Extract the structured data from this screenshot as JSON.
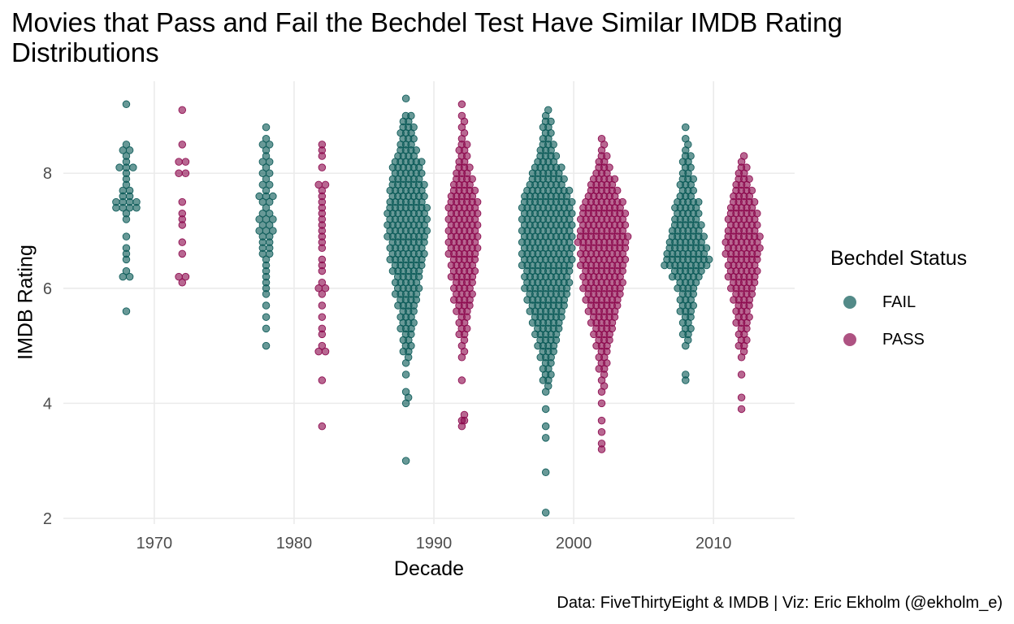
{
  "chart_data": {
    "type": "scatter",
    "subtype": "beeswarm",
    "title": "Movies that Pass and Fail the Bechdel Test Have Similar IMDB Rating Distributions",
    "xlabel": "Decade",
    "ylabel": "IMDB Rating",
    "caption": "Data: FiveThirtyEight & IMDB | Viz: Eric Ekholm (@ekholm_e)",
    "xlim": [
      1963.5,
      2015.8
    ],
    "ylim": [
      1.9,
      9.6
    ],
    "x_ticks": [
      1970,
      1980,
      1990,
      2000,
      2010
    ],
    "y_ticks": [
      2,
      4,
      6,
      8
    ],
    "grid": true,
    "legend": {
      "title": "Bechdel Status",
      "position": "right"
    },
    "series": [
      {
        "name": "FAIL",
        "color": "#0b5a57",
        "x_center": [
          1968,
          1978,
          1988,
          1998,
          2008
        ],
        "groups": [
          {
            "decade": 1970,
            "ratings": [
              9.2,
              8.5,
              8.4,
              8.4,
              8.3,
              8.2,
              8.1,
              8.1,
              8.1,
              8.0,
              7.9,
              7.8,
              7.7,
              7.7,
              7.6,
              7.6,
              7.5,
              7.5,
              7.5,
              7.5,
              7.4,
              7.4,
              7.4,
              7.4,
              7.3,
              7.2,
              6.9,
              6.7,
              6.6,
              6.5,
              6.3,
              6.2,
              6.2,
              5.6
            ]
          },
          {
            "decade": 1980,
            "ratings": [
              8.8,
              8.6,
              8.5,
              8.5,
              8.4,
              8.3,
              8.2,
              8.2,
              8.1,
              8.0,
              8.0,
              7.9,
              7.8,
              7.8,
              7.7,
              7.6,
              7.6,
              7.6,
              7.5,
              7.5,
              7.4,
              7.3,
              7.3,
              7.2,
              7.2,
              7.2,
              7.1,
              7.1,
              7.0,
              7.0,
              7.0,
              6.9,
              6.9,
              6.8,
              6.8,
              6.7,
              6.7,
              6.6,
              6.6,
              6.5,
              6.4,
              6.3,
              6.2,
              6.1,
              6.0,
              5.9,
              5.7,
              5.5,
              5.3,
              5.0
            ]
          },
          {
            "decade": 1990,
            "profile": [
              [
                9.3,
                1
              ],
              [
                8.9,
                3
              ],
              [
                8.7,
                5
              ],
              [
                8.5,
                6
              ],
              [
                8.3,
                8
              ],
              [
                8.1,
                11
              ],
              [
                7.9,
                12
              ],
              [
                7.7,
                13
              ],
              [
                7.5,
                14
              ],
              [
                7.3,
                15
              ],
              [
                7.1,
                15
              ],
              [
                6.9,
                15
              ],
              [
                6.7,
                14
              ],
              [
                6.5,
                13
              ],
              [
                6.3,
                12
              ],
              [
                6.1,
                10
              ],
              [
                5.9,
                9
              ],
              [
                5.7,
                7
              ],
              [
                5.5,
                6
              ],
              [
                5.3,
                5
              ],
              [
                5.1,
                4
              ],
              [
                4.9,
                4
              ],
              [
                4.7,
                2
              ],
              [
                4.5,
                1
              ],
              [
                4.2,
                1
              ],
              [
                4.0,
                2
              ],
              [
                3.0,
                1
              ]
            ]
          },
          {
            "decade": 2000,
            "profile": [
              [
                9.0,
                2
              ],
              [
                8.8,
                3
              ],
              [
                8.6,
                4
              ],
              [
                8.4,
                6
              ],
              [
                8.2,
                8
              ],
              [
                8.0,
                11
              ],
              [
                7.8,
                14
              ],
              [
                7.6,
                17
              ],
              [
                7.4,
                19
              ],
              [
                7.2,
                20
              ],
              [
                7.0,
                20
              ],
              [
                6.8,
                20
              ],
              [
                6.6,
                20
              ],
              [
                6.4,
                19
              ],
              [
                6.2,
                18
              ],
              [
                6.0,
                17
              ],
              [
                5.8,
                15
              ],
              [
                5.6,
                14
              ],
              [
                5.4,
                12
              ],
              [
                5.2,
                10
              ],
              [
                5.0,
                8
              ],
              [
                4.8,
                6
              ],
              [
                4.6,
                4
              ],
              [
                4.4,
                3
              ],
              [
                4.2,
                2
              ],
              [
                3.9,
                1
              ],
              [
                3.6,
                1
              ],
              [
                3.4,
                1
              ],
              [
                2.8,
                1
              ],
              [
                2.1,
                1
              ]
            ]
          },
          {
            "decade": 2010,
            "profile": [
              [
                8.8,
                1
              ],
              [
                8.6,
                1
              ],
              [
                8.4,
                2
              ],
              [
                8.2,
                3
              ],
              [
                8.0,
                4
              ],
              [
                7.8,
                5
              ],
              [
                7.6,
                6
              ],
              [
                7.4,
                9
              ],
              [
                7.2,
                10
              ],
              [
                7.0,
                12
              ],
              [
                6.8,
                14
              ],
              [
                6.6,
                16
              ],
              [
                6.4,
                17
              ],
              [
                6.2,
                11
              ],
              [
                6.0,
                8
              ],
              [
                5.8,
                6
              ],
              [
                5.6,
                5
              ],
              [
                5.4,
                4
              ],
              [
                5.2,
                3
              ],
              [
                5.0,
                2
              ],
              [
                4.5,
                1
              ],
              [
                4.4,
                1
              ]
            ]
          }
        ]
      },
      {
        "name": "PASS",
        "color": "#8c0a4e",
        "x_center": [
          1972,
          1982,
          1992,
          2002,
          2012
        ],
        "groups": [
          {
            "decade": 1970,
            "ratings": [
              9.1,
              8.5,
              8.2,
              8.2,
              8.0,
              8.0,
              7.5,
              7.3,
              7.2,
              7.1,
              6.8,
              6.6,
              6.2,
              6.2,
              6.1
            ]
          },
          {
            "decade": 1980,
            "ratings": [
              8.5,
              8.4,
              8.3,
              8.1,
              7.8,
              7.8,
              7.7,
              7.6,
              7.5,
              7.4,
              7.3,
              7.2,
              7.1,
              7.0,
              6.9,
              6.8,
              6.7,
              6.5,
              6.4,
              6.3,
              6.1,
              6.0,
              6.0,
              5.9,
              5.7,
              5.5,
              5.3,
              5.2,
              5.0,
              4.9,
              4.9,
              4.4,
              3.6
            ]
          },
          {
            "decade": 1990,
            "profile": [
              [
                9.2,
                1
              ],
              [
                9.0,
                1
              ],
              [
                8.8,
                2
              ],
              [
                8.6,
                2
              ],
              [
                8.4,
                3
              ],
              [
                8.2,
                4
              ],
              [
                8.0,
                5
              ],
              [
                7.8,
                7
              ],
              [
                7.6,
                9
              ],
              [
                7.4,
                11
              ],
              [
                7.2,
                12
              ],
              [
                7.0,
                12
              ],
              [
                6.8,
                12
              ],
              [
                6.6,
                11
              ],
              [
                6.4,
                10
              ],
              [
                6.2,
                9
              ],
              [
                6.0,
                8
              ],
              [
                5.8,
                7
              ],
              [
                5.6,
                6
              ],
              [
                5.4,
                4
              ],
              [
                5.2,
                3
              ],
              [
                5.0,
                2
              ],
              [
                4.8,
                2
              ],
              [
                4.4,
                1
              ],
              [
                3.7,
                2
              ],
              [
                3.6,
                2
              ]
            ]
          },
          {
            "decade": 2000,
            "profile": [
              [
                8.6,
                1
              ],
              [
                8.4,
                2
              ],
              [
                8.2,
                4
              ],
              [
                8.0,
                6
              ],
              [
                7.8,
                9
              ],
              [
                7.6,
                12
              ],
              [
                7.4,
                15
              ],
              [
                7.2,
                17
              ],
              [
                7.0,
                18
              ],
              [
                6.8,
                19
              ],
              [
                6.6,
                18
              ],
              [
                6.4,
                17
              ],
              [
                6.2,
                16
              ],
              [
                6.0,
                15
              ],
              [
                5.8,
                13
              ],
              [
                5.6,
                11
              ],
              [
                5.4,
                9
              ],
              [
                5.2,
                7
              ],
              [
                5.0,
                5
              ],
              [
                4.8,
                4
              ],
              [
                4.6,
                3
              ],
              [
                4.4,
                2
              ],
              [
                4.2,
                2
              ],
              [
                4.0,
                1
              ],
              [
                3.7,
                1
              ],
              [
                3.5,
                1
              ],
              [
                3.3,
                1
              ],
              [
                3.2,
                1
              ]
            ]
          },
          {
            "decade": 2010,
            "profile": [
              [
                8.2,
                2
              ],
              [
                8.0,
                4
              ],
              [
                7.8,
                6
              ],
              [
                7.6,
                8
              ],
              [
                7.4,
                10
              ],
              [
                7.2,
                11
              ],
              [
                7.0,
                12
              ],
              [
                6.8,
                13
              ],
              [
                6.6,
                13
              ],
              [
                6.4,
                12
              ],
              [
                6.2,
                11
              ],
              [
                6.0,
                9
              ],
              [
                5.8,
                8
              ],
              [
                5.6,
                6
              ],
              [
                5.4,
                5
              ],
              [
                5.2,
                4
              ],
              [
                5.0,
                3
              ],
              [
                4.8,
                2
              ],
              [
                4.5,
                1
              ],
              [
                4.1,
                1
              ],
              [
                3.9,
                1
              ]
            ]
          }
        ]
      }
    ]
  }
}
